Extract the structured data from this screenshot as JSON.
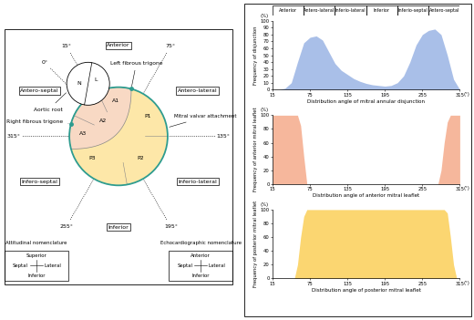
{
  "diagram": {
    "angles": [
      {
        "value": 0,
        "label": "0°"
      },
      {
        "value": 15,
        "label": "15°"
      },
      {
        "value": 75,
        "label": "75°"
      },
      {
        "value": 135,
        "label": "135°"
      },
      {
        "value": 195,
        "label": "195°"
      },
      {
        "value": 255,
        "label": "255°"
      },
      {
        "value": 315,
        "label": "315°"
      }
    ],
    "segments": [
      {
        "label": "Anterior",
        "from": 15,
        "to": 75
      },
      {
        "label": "Antero-lateral",
        "from": 75,
        "to": 135
      },
      {
        "label": "Inferio-lateral",
        "from": 135,
        "to": 195
      },
      {
        "label": "Inferior",
        "from": 195,
        "to": 255
      },
      {
        "label": "Infero-septal",
        "from": 255,
        "to": 315
      },
      {
        "label": "Antero-septal",
        "from": 315,
        "to": 15
      }
    ],
    "structures": {
      "left_fibrous_trigone": "Left fibrous trigone",
      "aortic_root": "Aortic root",
      "right_fibrous_trigone": "Right fibrous trigone",
      "mitral_valvar_attachment": "Mitral valvar attachment"
    },
    "aortic_cusps": [
      "N",
      "L"
    ],
    "anterior_scallops": [
      "A1",
      "A2",
      "A3"
    ],
    "posterior_scallops": [
      "P1",
      "P2",
      "P3"
    ],
    "nomenclatures": [
      {
        "title": "Attitudinal nomenclature",
        "top": "Superior",
        "bottom": "Inferior",
        "left": "Septal",
        "right": "Lateral"
      },
      {
        "title": "Echocardiographic nomenclature",
        "top": "Anterior",
        "bottom": "Inferior",
        "left": "Septal",
        "right": "Lateral"
      }
    ]
  },
  "chart_panel": {
    "segment_labels": [
      "Anterior",
      "Antero-lateral",
      "Inferio-lateral",
      "Inferior",
      "Inferio-septal",
      "Antero-septal"
    ]
  },
  "chart_data": [
    {
      "type": "area",
      "ylabel": "Frequency of disjunction",
      "xlabel": "Distribution angle of mitral annular disjunction",
      "y_unit_label": "(%)",
      "x_unit_label": "(°)",
      "color": "#a9bfe8",
      "x": [
        15,
        25,
        35,
        45,
        55,
        65,
        75,
        85,
        95,
        105,
        115,
        125,
        135,
        145,
        155,
        165,
        175,
        185,
        195,
        205,
        215,
        225,
        235,
        245,
        255,
        265,
        275,
        285,
        295,
        305,
        315
      ],
      "values": [
        0,
        0,
        2,
        10,
        40,
        68,
        76,
        78,
        72,
        55,
        38,
        28,
        22,
        16,
        12,
        9,
        7,
        6,
        5,
        6,
        10,
        20,
        40,
        65,
        80,
        86,
        88,
        80,
        50,
        15,
        0
      ],
      "xlim": [
        15,
        315
      ],
      "ylim": [
        0,
        100
      ],
      "xticks": [
        15,
        75,
        135,
        195,
        255,
        315
      ],
      "yticks": [
        0,
        10,
        20,
        30,
        40,
        50,
        60,
        70,
        80,
        90,
        100
      ]
    },
    {
      "type": "area",
      "ylabel": "Frequency of anterior mitral leaflet",
      "xlabel": "Distribution angle of anterior mitral leaflet",
      "y_unit_label": "(%)",
      "x_unit_label": "(°)",
      "color": "#f6b79c",
      "x": [
        15,
        55,
        60,
        65,
        70,
        280,
        285,
        290,
        295,
        300,
        315
      ],
      "values": [
        100,
        100,
        85,
        40,
        0,
        0,
        20,
        60,
        90,
        100,
        100
      ],
      "xlim": [
        15,
        315
      ],
      "ylim": [
        0,
        100
      ],
      "xticks": [
        15,
        75,
        135,
        195,
        255,
        315
      ],
      "yticks": [
        0,
        20,
        40,
        60,
        80,
        100
      ]
    },
    {
      "type": "area",
      "ylabel": "Frequency of posterior mitral leaflet",
      "xlabel": "Distribution angle of posterior mitral leaflet",
      "y_unit_label": "(%)",
      "x_unit_label": "(°)",
      "color": "#fbd671",
      "x": [
        15,
        50,
        55,
        60,
        65,
        70,
        290,
        295,
        300,
        305,
        310,
        315
      ],
      "values": [
        0,
        0,
        20,
        60,
        90,
        100,
        100,
        95,
        60,
        20,
        0,
        0
      ],
      "xlim": [
        15,
        315
      ],
      "ylim": [
        0,
        100
      ],
      "xticks": [
        15,
        75,
        135,
        195,
        255,
        315
      ],
      "yticks": [
        0,
        20,
        40,
        60,
        80,
        100
      ]
    }
  ]
}
